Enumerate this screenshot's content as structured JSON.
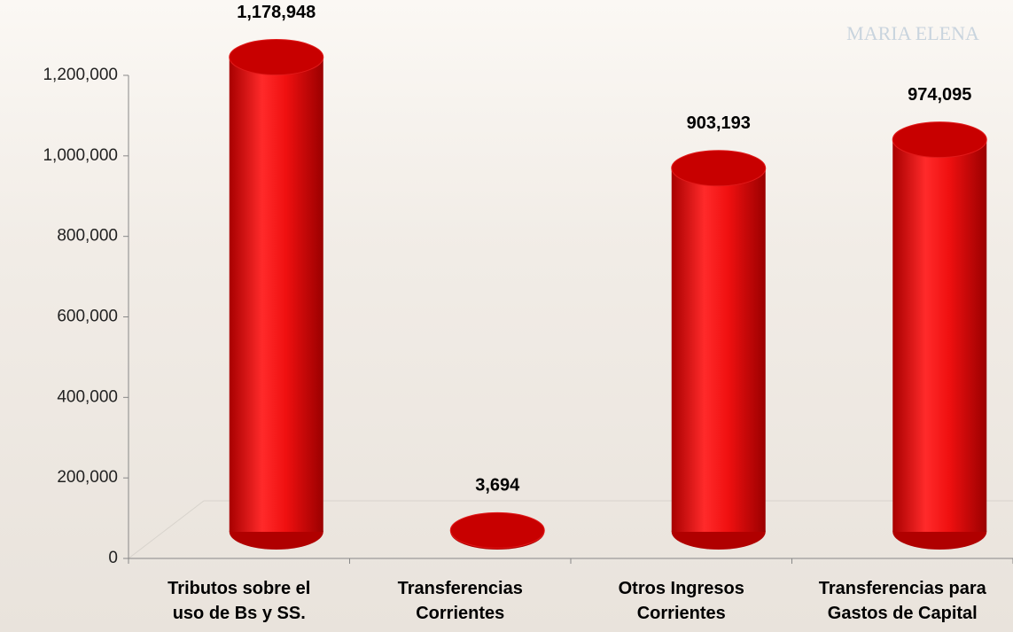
{
  "logo": "MARIA ELENA",
  "chart_data": {
    "type": "cylinder",
    "categories": [
      "Tributos sobre el uso de Bs y SS.",
      "Transferencias Corrientes",
      "Otros Ingresos Corrientes",
      "Transferencias para Gastos de Capital"
    ],
    "values": [
      1178948,
      3694,
      903193,
      974095
    ],
    "value_labels": [
      "1,178,948",
      "3,694",
      "903,193",
      "974,095"
    ],
    "color": "#e00000",
    "ylim": [
      0,
      1200000
    ],
    "yticks": [
      0,
      {
        "value": 200000,
        "label": "200,000"
      },
      {
        "value": 400000,
        "label": "400,000"
      },
      {
        "value": 600000,
        "label": "600,000"
      },
      {
        "value": 800000,
        "label": "800,000"
      },
      {
        "value": 1000000,
        "label": "1,000,000"
      },
      {
        "value": 1200000,
        "label": "1,200,000"
      }
    ]
  }
}
